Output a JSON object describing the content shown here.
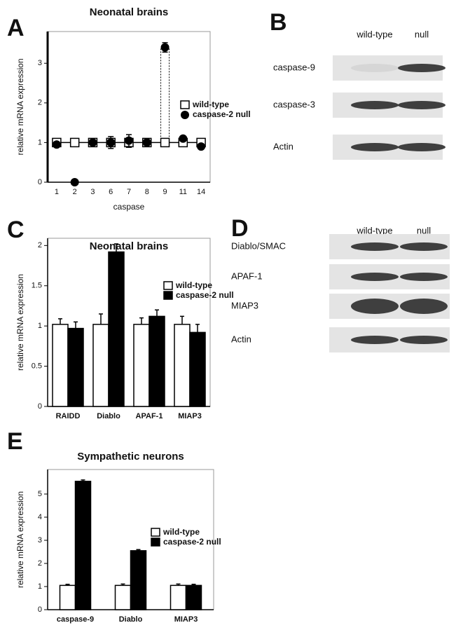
{
  "panels": [
    "A",
    "B",
    "C",
    "D",
    "E"
  ],
  "chart_data": [
    {
      "type": "line",
      "title": "Neonatal brains",
      "x_label": "caspase",
      "y_label": "relative mRNA expression",
      "categories": [
        "1",
        "2",
        "3",
        "6",
        "7",
        "8",
        "9",
        "11",
        "14"
      ],
      "ylim": [
        0,
        3.8
      ],
      "yticks": [
        0,
        1,
        2,
        3
      ],
      "series": [
        {
          "name": "wild-type",
          "color": "#ffffff",
          "marker": "square",
          "values": [
            1,
            1,
            1,
            1,
            1,
            1,
            1,
            1,
            1
          ],
          "errors": [
            0.05,
            0.05,
            0.05,
            0.1,
            0.12,
            0.08,
            0.05,
            0.1,
            0.1
          ]
        },
        {
          "name": "caspase-2 null",
          "color": "#000000",
          "marker": "circle",
          "values": [
            0.95,
            0,
            1,
            1,
            1.05,
            1,
            3.4,
            1.1,
            0.9
          ],
          "errors": [
            0.05,
            0,
            0.05,
            0.15,
            0.15,
            0.1,
            0.12,
            0.05,
            0.05
          ]
        }
      ]
    },
    {
      "type": "bar",
      "title": "Neonatal brains",
      "y_label": "relative mRNA expression",
      "categories": [
        "RAIDD",
        "Diablo",
        "APAF-1",
        "MIAP3"
      ],
      "ylim": [
        0,
        2.09
      ],
      "yticks": [
        0,
        0.5,
        1,
        1.5,
        2
      ],
      "series": [
        {
          "name": "wild-type",
          "color": "#ffffff",
          "values": [
            1.02,
            1.02,
            1.02,
            1.02
          ],
          "errors": [
            0.07,
            0.13,
            0.08,
            0.1
          ]
        },
        {
          "name": "caspase-2 null",
          "color": "#000000",
          "values": [
            0.97,
            1.92,
            1.12,
            0.92
          ],
          "errors": [
            0.08,
            0.1,
            0.08,
            0.1
          ]
        }
      ]
    },
    {
      "type": "bar",
      "title": "Sympathetic neurons",
      "y_label": "relative mRNA expression",
      "categories": [
        "caspase-9",
        "Diablo",
        "MIAP3"
      ],
      "ylim": [
        0,
        6.06
      ],
      "yticks": [
        0,
        1,
        2,
        3,
        4,
        5
      ],
      "series": [
        {
          "name": "wild-type",
          "color": "#ffffff",
          "values": [
            1.05,
            1.05,
            1.05
          ],
          "errors": [
            0.05,
            0.06,
            0.06
          ]
        },
        {
          "name": "caspase-2 null",
          "color": "#000000",
          "values": [
            5.55,
            2.55,
            1.05
          ],
          "errors": [
            0.06,
            0.05,
            0.05
          ]
        }
      ]
    }
  ],
  "blots": [
    {
      "columns": [
        "wild-type",
        "null"
      ],
      "rows": [
        "caspase-9",
        "caspase-3",
        "Actin"
      ]
    },
    {
      "columns": [
        "wild-type",
        "null"
      ],
      "rows": [
        "Diablo/SMAC",
        "APAF-1",
        "MIAP3",
        "Actin"
      ]
    }
  ]
}
